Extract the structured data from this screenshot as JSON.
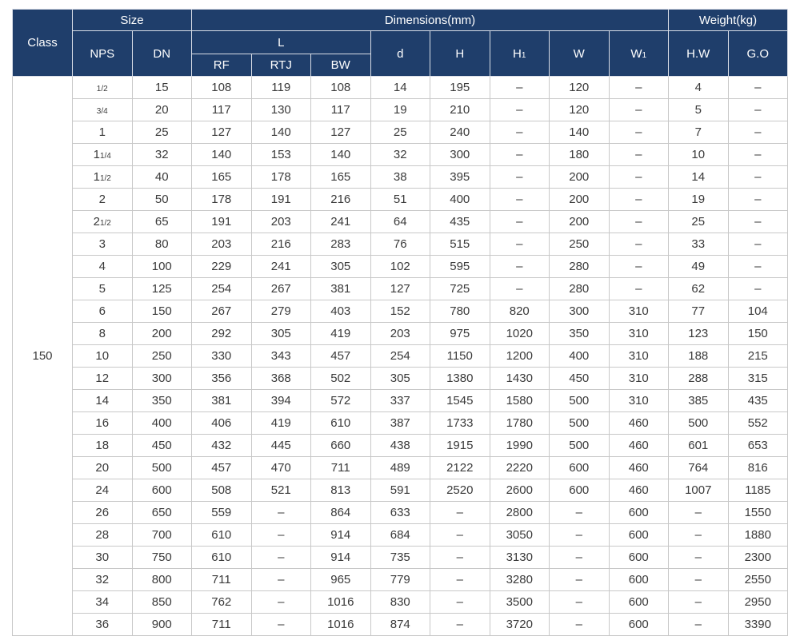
{
  "table": {
    "header": {
      "class": "Class",
      "size": "Size",
      "dimensions": "Dimensions(mm)",
      "weight": "Weight(kg)",
      "row2": [
        "NPS",
        "DN",
        "L",
        "d",
        "H",
        {
          "main": "H",
          "sub": "1"
        },
        "W",
        {
          "main": "W",
          "sub": "1"
        },
        "H.W",
        "G.O"
      ],
      "row3": [
        "RF",
        "RTJ",
        "BW"
      ]
    },
    "class_value": "150",
    "rows": [
      [
        {
          "fraction": "1/2"
        },
        15,
        108,
        119,
        108,
        14,
        195,
        "–",
        120,
        "–",
        4,
        "–"
      ],
      [
        {
          "fraction": "3/4"
        },
        20,
        117,
        130,
        117,
        19,
        210,
        "–",
        120,
        "–",
        5,
        "–"
      ],
      [
        "1",
        25,
        127,
        140,
        127,
        25,
        240,
        "–",
        140,
        "–",
        7,
        "–"
      ],
      [
        {
          "whole": "1",
          "fraction": "1/4"
        },
        32,
        140,
        153,
        140,
        32,
        300,
        "–",
        180,
        "–",
        10,
        "–"
      ],
      [
        {
          "whole": "1",
          "fraction": "1/2"
        },
        40,
        165,
        178,
        165,
        38,
        395,
        "–",
        200,
        "–",
        14,
        "–"
      ],
      [
        "2",
        50,
        178,
        191,
        216,
        51,
        400,
        "–",
        200,
        "–",
        19,
        "–"
      ],
      [
        {
          "whole": "2",
          "fraction": "1/2"
        },
        65,
        191,
        203,
        241,
        64,
        435,
        "–",
        200,
        "–",
        25,
        "–"
      ],
      [
        "3",
        80,
        203,
        216,
        283,
        76,
        515,
        "–",
        250,
        "–",
        33,
        "–"
      ],
      [
        "4",
        100,
        229,
        241,
        305,
        102,
        595,
        "–",
        280,
        "–",
        49,
        "–"
      ],
      [
        "5",
        125,
        254,
        267,
        381,
        127,
        725,
        "–",
        280,
        "–",
        62,
        "–"
      ],
      [
        "6",
        150,
        267,
        279,
        403,
        152,
        780,
        820,
        300,
        310,
        77,
        104
      ],
      [
        "8",
        200,
        292,
        305,
        419,
        203,
        975,
        1020,
        350,
        310,
        123,
        150
      ],
      [
        "10",
        250,
        330,
        343,
        457,
        254,
        1150,
        1200,
        400,
        310,
        188,
        215
      ],
      [
        "12",
        300,
        356,
        368,
        502,
        305,
        1380,
        1430,
        450,
        310,
        288,
        315
      ],
      [
        "14",
        350,
        381,
        394,
        572,
        337,
        1545,
        1580,
        500,
        310,
        385,
        435
      ],
      [
        "16",
        400,
        406,
        419,
        610,
        387,
        1733,
        1780,
        500,
        460,
        500,
        552
      ],
      [
        "18",
        450,
        432,
        445,
        660,
        438,
        1915,
        1990,
        500,
        460,
        601,
        653
      ],
      [
        "20",
        500,
        457,
        470,
        711,
        489,
        2122,
        2220,
        600,
        460,
        764,
        816
      ],
      [
        "24",
        600,
        508,
        521,
        813,
        591,
        2520,
        2600,
        600,
        460,
        1007,
        1185
      ],
      [
        "26",
        650,
        559,
        "–",
        864,
        633,
        "–",
        2800,
        "–",
        600,
        "–",
        1550
      ],
      [
        "28",
        700,
        610,
        "–",
        914,
        684,
        "–",
        3050,
        "–",
        600,
        "–",
        1880
      ],
      [
        "30",
        750,
        610,
        "–",
        914,
        735,
        "–",
        3130,
        "–",
        600,
        "–",
        2300
      ],
      [
        "32",
        800,
        711,
        "–",
        965,
        779,
        "–",
        3280,
        "–",
        600,
        "–",
        2550
      ],
      [
        "34",
        850,
        762,
        "–",
        1016,
        830,
        "–",
        3500,
        "–",
        600,
        "–",
        2950
      ],
      [
        "36",
        900,
        711,
        "–",
        1016,
        874,
        "–",
        3720,
        "–",
        600,
        "–",
        3390
      ]
    ]
  }
}
